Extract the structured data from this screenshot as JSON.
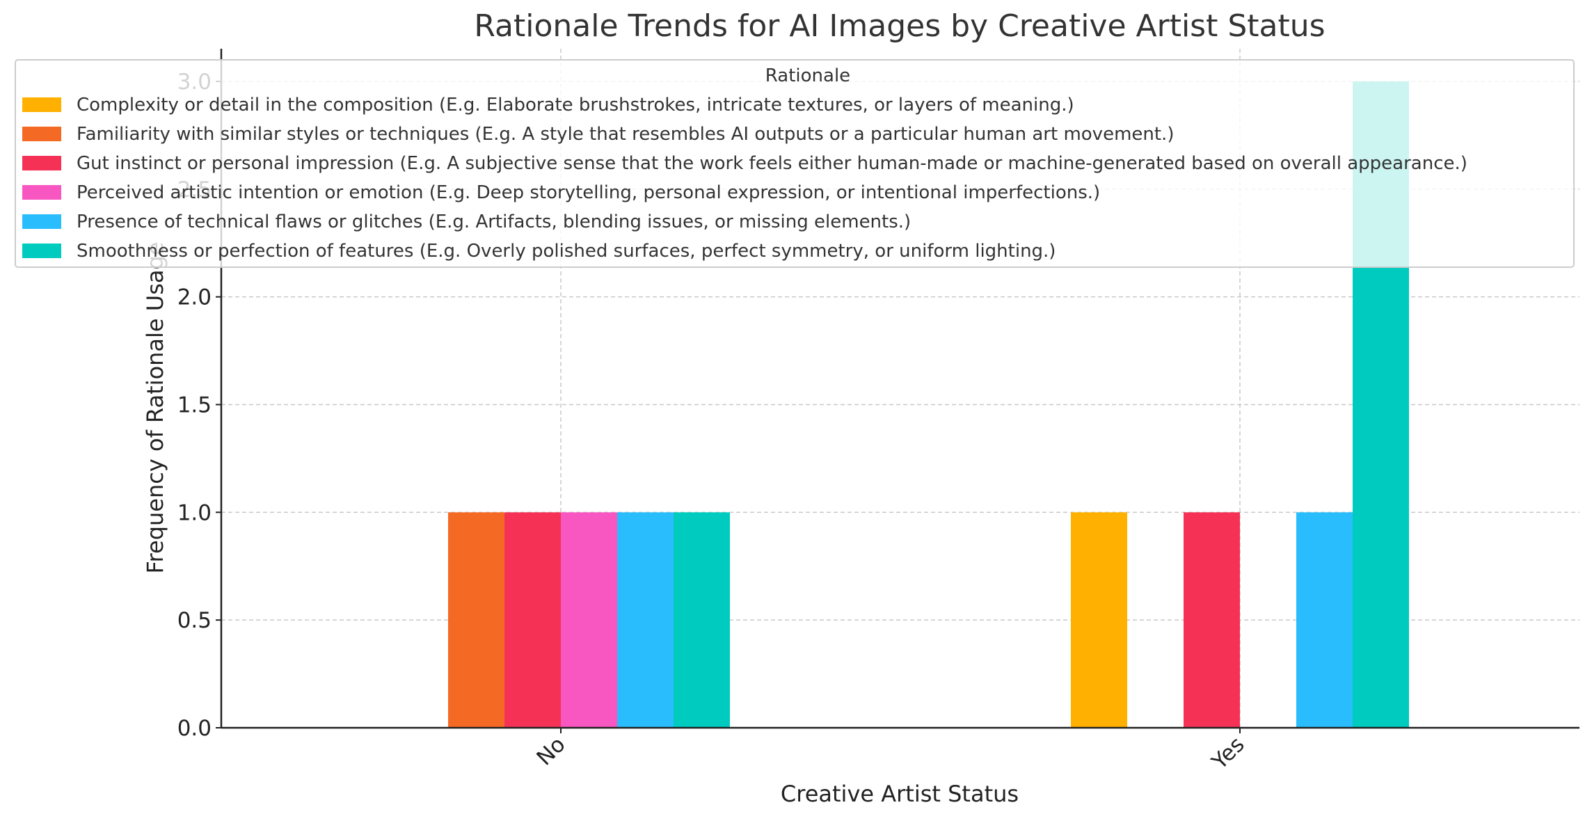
{
  "chart_data": {
    "type": "bar",
    "title": "Rationale Trends for AI Images by Creative Artist Status",
    "xlabel": "Creative Artist Status",
    "ylabel": "Frequency of Rationale Usage",
    "categories": [
      "No",
      "Yes"
    ],
    "ylim": [
      0,
      3.0
    ],
    "yticks": [
      "0.0",
      "0.5",
      "1.0",
      "1.5",
      "2.0",
      "2.5",
      "3.0"
    ],
    "grid": true,
    "legend": {
      "title": "Rationale",
      "placement": "top"
    },
    "series": [
      {
        "name": "Complexity or detail in the composition (E.g. Elaborate brushstrokes, intricate textures, or layers of meaning.)",
        "color": "#FFB000",
        "values": [
          0,
          1
        ]
      },
      {
        "name": "Familiarity with similar styles or techniques (E.g. A style that resembles AI outputs or a particular human art movement.)",
        "color": "#F46A25",
        "values": [
          1,
          0
        ]
      },
      {
        "name": "Gut instinct or personal impression (E.g. A subjective sense that the work feels either human-made or machine-generated based on overall appearance.)",
        "color": "#F53255",
        "values": [
          1,
          1
        ]
      },
      {
        "name": "Perceived artistic intention or emotion (E.g. Deep storytelling, personal expression, or intentional imperfections.)",
        "color": "#F857C1",
        "values": [
          1,
          0
        ]
      },
      {
        "name": "Presence of technical flaws or glitches (E.g. Artifacts, blending issues, or missing elements.)",
        "color": "#29BDFD",
        "values": [
          1,
          1
        ]
      },
      {
        "name": "Smoothness or perfection of features (E.g. Overly polished surfaces, perfect symmetry, or uniform lighting.)",
        "color": "#00CBBF",
        "values": [
          1,
          3
        ]
      }
    ]
  }
}
